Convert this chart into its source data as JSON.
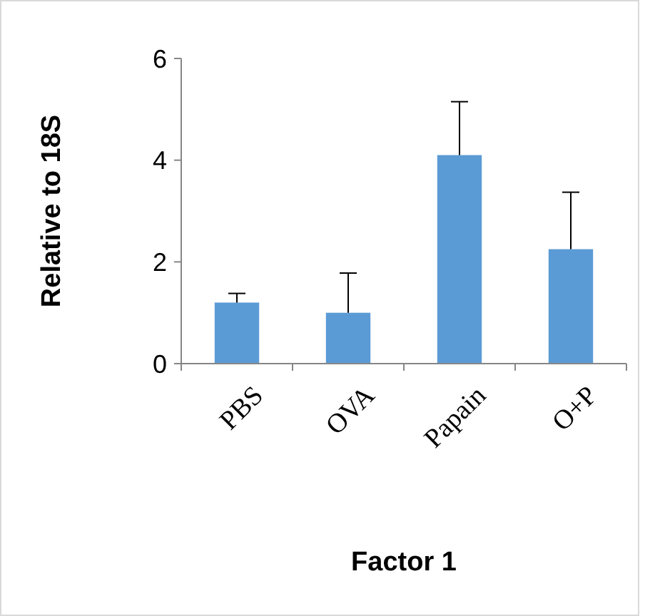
{
  "chart_data": {
    "type": "bar",
    "xlabel": "Factor 1",
    "ylabel": "Relative to 18S",
    "categories": [
      "PBS",
      "OVA",
      "Papain",
      "O+P"
    ],
    "values": [
      1.2,
      1.0,
      4.1,
      2.25
    ],
    "errors": [
      [
        1.2,
        1.38
      ],
      [
        1.0,
        1.78
      ],
      [
        4.1,
        5.15
      ],
      [
        2.25,
        3.37
      ]
    ],
    "color": "#5b9bd5",
    "ylim": [
      0,
      6
    ],
    "yticks": [
      0,
      2,
      4,
      6
    ],
    "grid": false
  }
}
